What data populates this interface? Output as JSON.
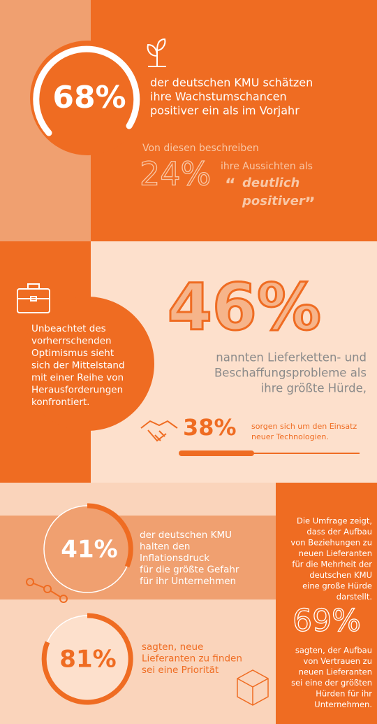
{
  "section1": {
    "stat": "68%",
    "text_lines": [
      "der deutschen KMU schätzen",
      "ihre Wachstumschancen",
      "positiver ein als im Vorjahr"
    ],
    "sub_intro": "Von diesen beschreiben",
    "sub_stat": "24%",
    "sub_text": "ihre Aussichten als",
    "quote_lines": [
      "deutlich",
      "positiver"
    ]
  },
  "section2": {
    "intro_lines": [
      "Unbeachtet des",
      "vorherrschenden",
      "Optimismus sieht",
      "sich der Mittelstand",
      "mit einer Reihe von",
      "Herausforderungen",
      "konfrontiert."
    ],
    "stat": "46%",
    "stat_lines": [
      "nannten Lieferketten- und",
      "Beschaffungsprobleme als",
      "ihre größte Hürde,"
    ],
    "stat2": "38%",
    "stat2_lines": [
      "sorgen sich um den Einsatz",
      "neuer Technologien."
    ]
  },
  "section3": {
    "stat_a": "41%",
    "stat_a_lines": [
      "der deutschen KMU",
      "halten den",
      "Inflationsdruck",
      "für die größte Gefahr",
      "für ihr Unternehmen"
    ],
    "stat_b": "81%",
    "stat_b_lines": [
      "sagten, neue",
      "Lieferanten zu finden",
      "sei eine Priorität"
    ],
    "side_lines": [
      "Die Umfrage zeigt,",
      "dass der Aufbau",
      "von Beziehungen zu",
      "neuen Lieferanten",
      "für die Mehrheit der",
      "deutschen KMU",
      "eine große Hürde",
      "darstellt."
    ],
    "side_stat": "69%",
    "side_stat_lines": [
      "sagten, der Aufbau",
      "von Vertrauen zu",
      "neuen Lieferanten",
      "sei eine der größten",
      "Hürden für ihr",
      "Unternehmen."
    ]
  }
}
